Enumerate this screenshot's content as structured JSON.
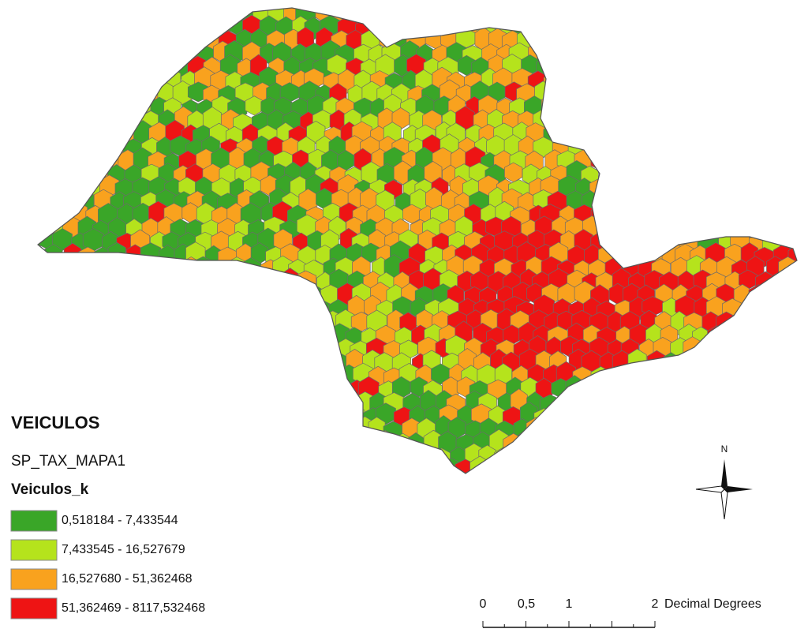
{
  "map": {
    "legend": {
      "title": "VEICULOS",
      "layer": "SP_TAX_MAPA1",
      "field": "Veiculos_k",
      "classes": [
        {
          "label": "0,518184 - 7,433544",
          "color": "#3aa628"
        },
        {
          "label": "7,433545 - 16,527679",
          "color": "#b5e31c"
        },
        {
          "label": "16,527680 - 51,362468",
          "color": "#f9a21e"
        },
        {
          "label": "51,362469 - 8117,532468",
          "color": "#ee1414"
        }
      ]
    },
    "north_arrow": "N",
    "scale_bar": {
      "labels": [
        "0",
        "0,5",
        "1",
        "2"
      ],
      "unit": "Decimal Degrees"
    }
  }
}
